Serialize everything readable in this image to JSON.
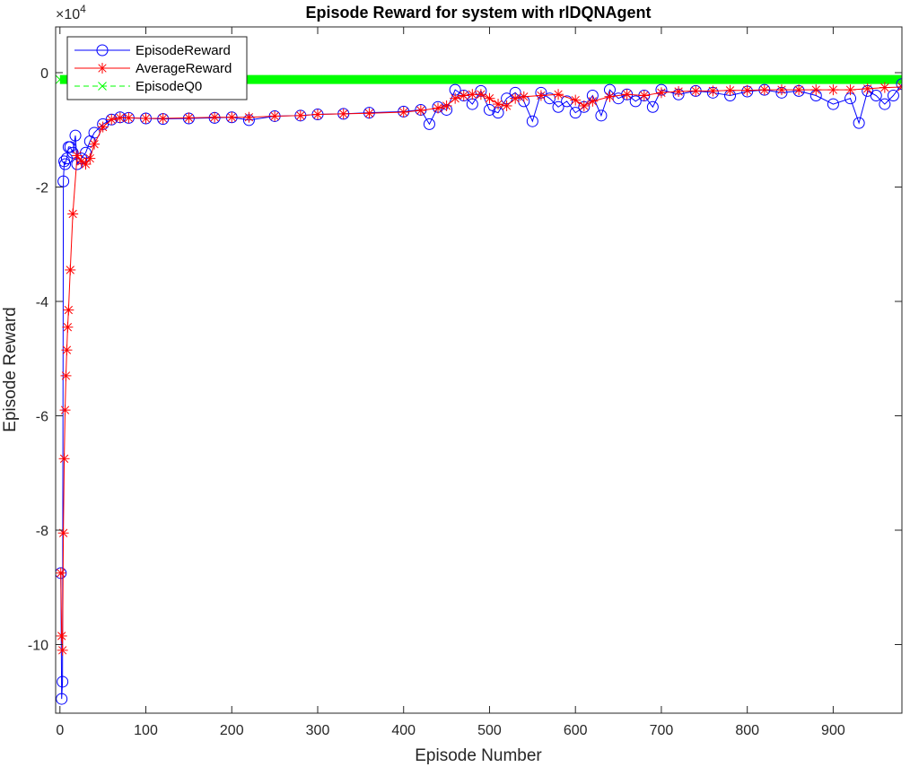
{
  "chart_data": {
    "type": "line",
    "title": "Episode Reward for system with rlDQNAgent",
    "xlabel": "Episode Number",
    "ylabel": "Episode Reward",
    "exponent_label": "×10",
    "exponent_power": "4",
    "xlim": [
      -5,
      980
    ],
    "ylim": [
      -112000,
      8000
    ],
    "xticks": [
      0,
      100,
      200,
      300,
      400,
      500,
      600,
      700,
      800,
      900
    ],
    "xtick_labels": [
      "0",
      "100",
      "200",
      "300",
      "400",
      "500",
      "600",
      "700",
      "800",
      "900"
    ],
    "yticks": [
      0,
      -20000,
      -40000,
      -60000,
      -80000,
      -100000
    ],
    "ytick_labels": [
      "0",
      "-2",
      "-4",
      "-6",
      "-8",
      "-10"
    ],
    "legend_position": "top-left",
    "series": [
      {
        "name": "EpisodeReward",
        "color": "#0000ff",
        "marker": "circle",
        "line": "solid",
        "x": [
          1,
          2,
          3,
          4,
          5,
          6,
          8,
          10,
          12,
          15,
          18,
          20,
          25,
          30,
          35,
          40,
          50,
          60,
          70,
          80,
          100,
          120,
          150,
          180,
          200,
          220,
          250,
          280,
          300,
          330,
          360,
          400,
          420,
          430,
          440,
          450,
          460,
          470,
          480,
          490,
          500,
          510,
          520,
          530,
          540,
          550,
          560,
          570,
          580,
          590,
          600,
          610,
          620,
          630,
          640,
          650,
          660,
          670,
          680,
          690,
          700,
          720,
          740,
          760,
          780,
          800,
          820,
          840,
          860,
          880,
          900,
          920,
          930,
          940,
          950,
          960,
          970,
          980
        ],
        "y": [
          -87500,
          -109500,
          -106500,
          -19000,
          -15500,
          -16000,
          -15000,
          -13000,
          -13000,
          -14000,
          -11000,
          -16000,
          -15000,
          -14000,
          -12000,
          -10500,
          -9000,
          -8200,
          -7800,
          -7900,
          -8000,
          -8100,
          -8000,
          -7900,
          -7800,
          -8300,
          -7600,
          -7500,
          -7300,
          -7200,
          -7000,
          -6800,
          -6500,
          -9000,
          -6000,
          -6500,
          -3000,
          -4000,
          -5500,
          -3200,
          -6500,
          -7000,
          -4500,
          -3500,
          -5000,
          -8500,
          -3500,
          -4500,
          -6000,
          -5000,
          -7000,
          -6000,
          -4000,
          -7500,
          -3000,
          -4500,
          -3800,
          -5000,
          -4000,
          -6000,
          -3000,
          -3800,
          -3200,
          -3500,
          -4000,
          -3300,
          -3000,
          -3500,
          -3200,
          -4000,
          -5500,
          -4500,
          -8800,
          -3200,
          -4000,
          -5500,
          -4000,
          -2000
        ]
      },
      {
        "name": "AverageReward",
        "color": "#ff0000",
        "marker": "asterisk",
        "line": "solid",
        "x": [
          1,
          2,
          3,
          4,
          5,
          6,
          7,
          8,
          9,
          10,
          12,
          15,
          20,
          25,
          30,
          35,
          40,
          50,
          60,
          70,
          80,
          100,
          120,
          150,
          180,
          200,
          220,
          250,
          280,
          300,
          330,
          360,
          400,
          420,
          440,
          450,
          460,
          470,
          480,
          490,
          500,
          510,
          520,
          530,
          540,
          560,
          580,
          600,
          610,
          620,
          640,
          660,
          680,
          700,
          720,
          740,
          760,
          780,
          800,
          820,
          840,
          860,
          880,
          900,
          920,
          940,
          960,
          980
        ],
        "y": [
          -87500,
          -98500,
          -101000,
          -80500,
          -67500,
          -59000,
          -53000,
          -48500,
          -44500,
          -41500,
          -34500,
          -24700,
          -14500,
          -15500,
          -16000,
          -15000,
          -12500,
          -9500,
          -8200,
          -7900,
          -7900,
          -8000,
          -8000,
          -7900,
          -7800,
          -7800,
          -7800,
          -7600,
          -7500,
          -7300,
          -7200,
          -7100,
          -6900,
          -6600,
          -6200,
          -5800,
          -4500,
          -4000,
          -3800,
          -3800,
          -4500,
          -5500,
          -5800,
          -4500,
          -4200,
          -4000,
          -3800,
          -4800,
          -5800,
          -5000,
          -4200,
          -3800,
          -4000,
          -3500,
          -3300,
          -3200,
          -3200,
          -3100,
          -3100,
          -3000,
          -3000,
          -3000,
          -3000,
          -3000,
          -3000,
          -2800,
          -2600,
          -2500
        ]
      },
      {
        "name": "EpisodeQ0",
        "color": "#00ff00",
        "marker": "x",
        "line": "dashed",
        "x": [
          0,
          100,
          200,
          300,
          400,
          500,
          600,
          700,
          800,
          900,
          980
        ],
        "y": [
          -1200,
          -1200,
          -1200,
          -1200,
          -1200,
          -1200,
          -1200,
          -1200,
          -1200,
          -1200,
          -1200
        ]
      }
    ]
  }
}
